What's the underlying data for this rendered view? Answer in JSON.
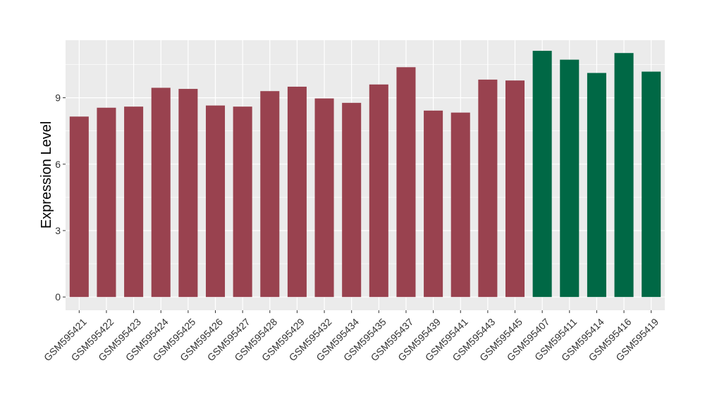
{
  "chart_data": {
    "type": "bar",
    "ylabel": "Expression Level",
    "xlabel": "",
    "ylim": [
      -0.6,
      11.6
    ],
    "yticks": [
      0,
      3,
      6,
      9
    ],
    "grid": true,
    "legend": "none",
    "categories": [
      "GSM595421",
      "GSM595422",
      "GSM595423",
      "GSM595424",
      "GSM595425",
      "GSM595426",
      "GSM595427",
      "GSM595428",
      "GSM595429",
      "GSM595432",
      "GSM595434",
      "GSM595435",
      "GSM595437",
      "GSM595439",
      "GSM595441",
      "GSM595443",
      "GSM595445",
      "GSM595407",
      "GSM595411",
      "GSM595414",
      "GSM595416",
      "GSM595419"
    ],
    "values": [
      8.15,
      8.55,
      8.6,
      9.45,
      9.4,
      8.65,
      8.6,
      9.3,
      9.5,
      8.97,
      8.77,
      9.6,
      10.38,
      8.42,
      8.33,
      9.82,
      9.78,
      11.12,
      10.72,
      10.12,
      11.02,
      10.18
    ],
    "groups": [
      "a",
      "a",
      "a",
      "a",
      "a",
      "a",
      "a",
      "a",
      "a",
      "a",
      "a",
      "a",
      "a",
      "a",
      "a",
      "a",
      "a",
      "b",
      "b",
      "b",
      "b",
      "b"
    ],
    "group_colors": {
      "a": "#99424f",
      "b": "#006845"
    },
    "panel_background": "#ebebeb",
    "grid_color": "#ffffff"
  }
}
